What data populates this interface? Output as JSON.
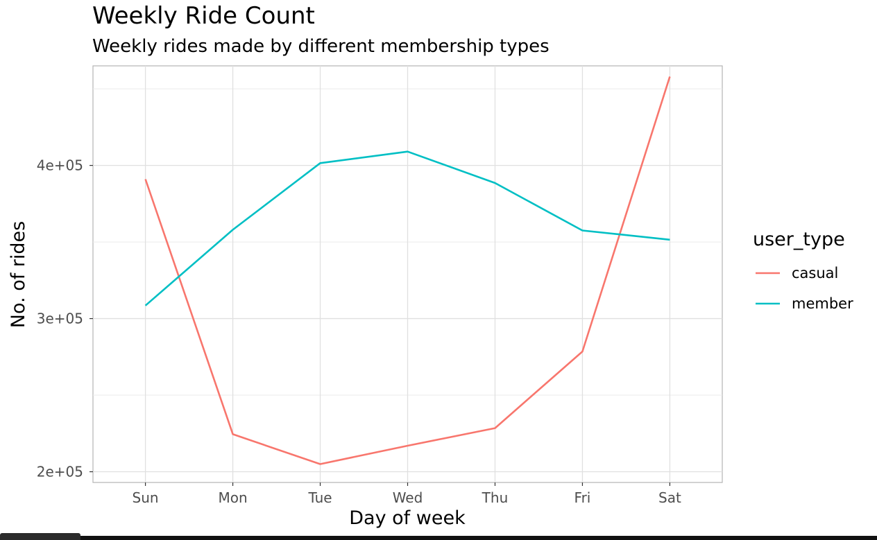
{
  "chart_data": {
    "type": "line",
    "title": "Weekly Ride Count",
    "subtitle": "Weekly rides made by different membership types",
    "xlabel": "Day of week",
    "ylabel": "No. of rides",
    "categories": [
      "Sun",
      "Mon",
      "Tue",
      "Wed",
      "Thu",
      "Fri",
      "Sat"
    ],
    "ylim": [
      193000,
      465000
    ],
    "yticks": [
      200000,
      300000,
      400000
    ],
    "ytick_labels": [
      "2e+05",
      "3e+05",
      "4e+05"
    ],
    "grid": true,
    "legend": {
      "title": "user_type",
      "position": "right"
    },
    "series": [
      {
        "name": "casual",
        "color": "#F8766D",
        "values": [
          391000,
          224500,
          205000,
          217000,
          228500,
          278500,
          458000
        ]
      },
      {
        "name": "member",
        "color": "#00BFC4",
        "values": [
          308500,
          358000,
          401500,
          409000,
          388500,
          357500,
          351500
        ]
      }
    ]
  }
}
